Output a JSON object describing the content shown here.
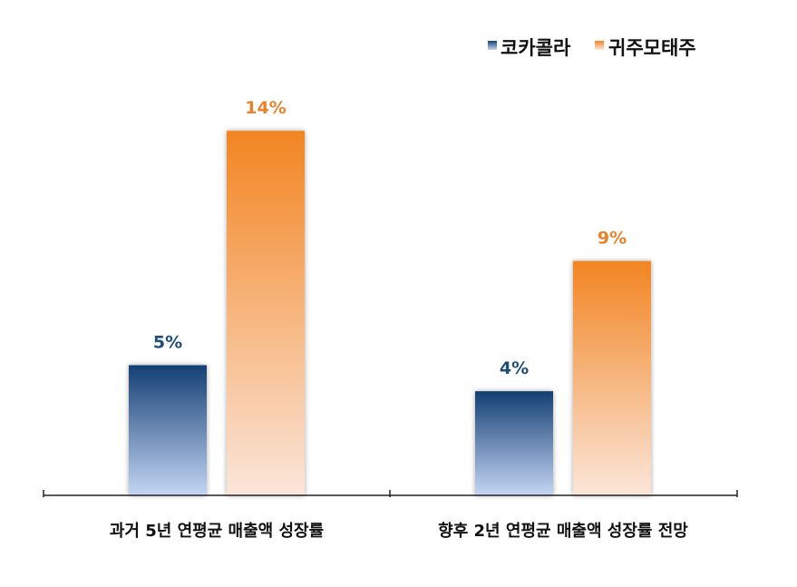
{
  "chart_data": {
    "type": "bar",
    "categories": [
      "과거 5년 연평균 매출액 성장률",
      "향후 2년 연평균 매출액 성장률 전망"
    ],
    "series": [
      {
        "name": "코카콜라",
        "values": [
          5,
          4
        ],
        "labels": [
          "5%",
          "4%"
        ],
        "color": "#1F4E79"
      },
      {
        "name": "귀주모태주",
        "values": [
          14,
          9
        ],
        "labels": [
          "14%",
          "9%"
        ],
        "color": "#F28C28"
      }
    ],
    "ylim": [
      0,
      15
    ],
    "legend_position": "top-right",
    "grid": false
  }
}
